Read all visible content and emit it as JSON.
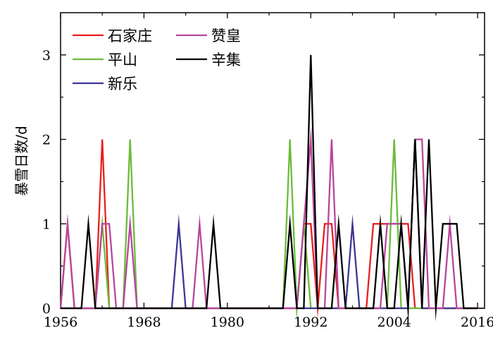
{
  "chart_data": {
    "type": "line",
    "title": "",
    "xlabel": "",
    "ylabel": "暴雪日数/d",
    "xlim": [
      1956,
      2017
    ],
    "ylim": [
      0,
      3.5
    ],
    "xticks": [
      1956,
      1968,
      1980,
      1992,
      2004,
      2016
    ],
    "xtick_labels": [
      "1956",
      "1968",
      "1980",
      "1992",
      "2004",
      "2016"
    ],
    "yticks": [
      0,
      1,
      2,
      3
    ],
    "ytick_labels": [
      "0",
      "1",
      "2",
      "3"
    ],
    "legend_position": "top-left",
    "x": [
      1956,
      1957,
      1958,
      1959,
      1960,
      1961,
      1962,
      1963,
      1964,
      1965,
      1966,
      1967,
      1968,
      1969,
      1970,
      1971,
      1972,
      1973,
      1974,
      1975,
      1976,
      1977,
      1978,
      1979,
      1980,
      1981,
      1982,
      1983,
      1984,
      1985,
      1986,
      1987,
      1988,
      1989,
      1990,
      1991,
      1992,
      1993,
      1994,
      1995,
      1996,
      1997,
      1998,
      1999,
      2000,
      2001,
      2002,
      2003,
      2004,
      2005,
      2006,
      2007,
      2008,
      2009,
      2010,
      2011,
      2012,
      2013,
      2014,
      2015,
      2016
    ],
    "series": [
      {
        "name": "石家庄",
        "color": "#e8201c",
        "values": [
          0,
          1,
          0,
          0,
          0,
          0,
          2,
          0,
          0,
          0,
          0,
          0,
          0,
          0,
          0,
          0,
          0,
          0,
          0,
          0,
          0,
          0,
          0,
          0,
          0,
          0,
          0,
          0,
          0,
          0,
          0,
          0,
          0,
          0,
          0,
          1,
          1,
          0,
          1,
          1,
          0,
          0,
          0,
          0,
          0,
          1,
          1,
          1,
          1,
          1,
          1,
          0,
          0,
          0,
          0,
          0,
          0,
          0,
          0,
          0,
          0
        ]
      },
      {
        "name": "平山",
        "color": "#6cbb3c",
        "values": [
          0,
          0,
          0,
          0,
          0,
          0,
          1,
          0,
          0,
          0,
          2,
          0,
          0,
          0,
          0,
          0,
          0,
          0,
          0,
          0,
          0,
          0,
          0,
          0,
          0,
          0,
          0,
          0,
          0,
          0,
          0,
          0,
          0,
          2,
          0,
          1,
          0,
          0,
          0,
          0,
          0,
          0,
          0,
          0,
          0,
          0,
          0,
          0,
          2,
          0,
          0,
          0,
          0,
          0,
          0,
          0,
          0,
          0,
          0,
          0,
          0
        ]
      },
      {
        "name": "新乐",
        "color": "#3d3695",
        "values": [
          0,
          0,
          0,
          0,
          0,
          0,
          0,
          0,
          0,
          0,
          0,
          0,
          0,
          0,
          0,
          0,
          0,
          1,
          0,
          0,
          0,
          0,
          0,
          0,
          0,
          0,
          0,
          0,
          0,
          0,
          0,
          0,
          0,
          0,
          0,
          0,
          0,
          0,
          0,
          0,
          0,
          0,
          1,
          0,
          0,
          0,
          0,
          0,
          0,
          0,
          0,
          2,
          0,
          0,
          0,
          0,
          0,
          0,
          0,
          0,
          0
        ]
      },
      {
        "name": "赞皇",
        "color": "#b6479c",
        "values": [
          0,
          1,
          0,
          0,
          0,
          0,
          1,
          1,
          0,
          0,
          1,
          0,
          0,
          0,
          0,
          0,
          0,
          0,
          0,
          0,
          1,
          0,
          0,
          0,
          0,
          0,
          0,
          0,
          0,
          0,
          0,
          0,
          0,
          0,
          0,
          1,
          2,
          0,
          0,
          2,
          0,
          0,
          0,
          0,
          0,
          0,
          0,
          1,
          1,
          1,
          0,
          2,
          2,
          0,
          0,
          0,
          1,
          0,
          0,
          0,
          0
        ]
      },
      {
        "name": "辛集",
        "color": "#000000",
        "values": [
          0,
          0,
          0,
          0,
          1,
          0,
          0,
          0,
          0,
          0,
          0,
          0,
          0,
          0,
          0,
          0,
          0,
          0,
          0,
          0,
          0,
          0,
          1,
          0,
          0,
          0,
          0,
          0,
          0,
          0,
          0,
          0,
          0,
          1,
          0,
          0,
          3,
          0,
          0,
          0,
          1,
          0,
          0,
          0,
          0,
          0,
          1,
          0,
          0,
          1,
          0,
          2,
          0,
          2,
          0,
          1,
          1,
          1,
          0,
          0,
          0
        ]
      }
    ]
  }
}
